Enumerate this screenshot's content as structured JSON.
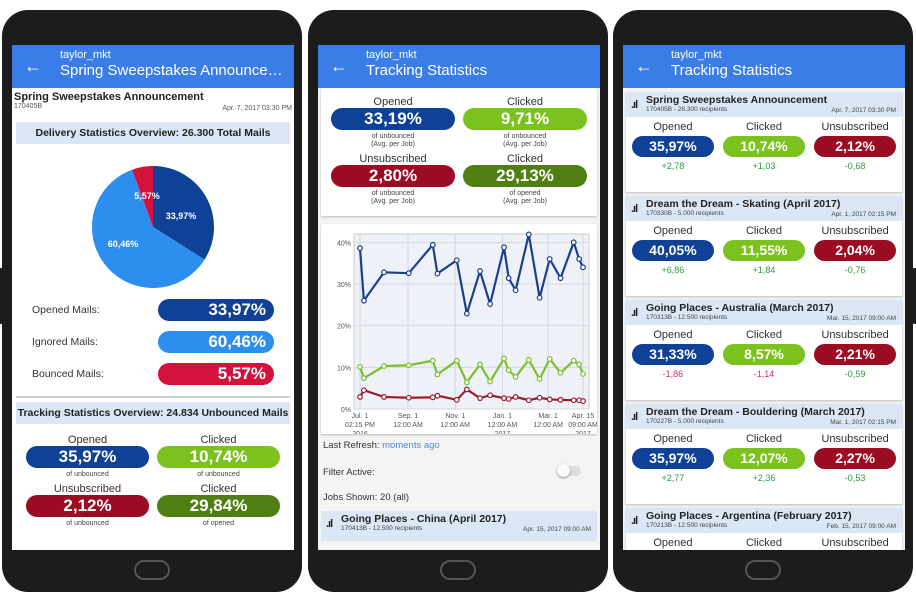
{
  "user": "taylor_mkt",
  "colors": {
    "opened": "#0f4196",
    "ignored": "#2c8ff0",
    "bounced": "#d3113b",
    "clicked": "#7bc21f",
    "unsubscribed": "#9b0b22",
    "clicked_of_opened": "#4f7f12",
    "header": "#3a7de6"
  },
  "phone1": {
    "header_title": "Spring Sweepstakes Announcement",
    "job_title": "Spring Sweepstakes Announcement",
    "job_id": "170405B",
    "job_date": "Apr. 7, 2017 03:30 PM",
    "delivery_banner": "Delivery Statistics Overview: 26.300 Total Mails",
    "pie": [
      {
        "label": "Opened Mails:",
        "value": 33.97,
        "text": "33,97%",
        "color": "#0f4196"
      },
      {
        "label": "Ignored Mails:",
        "value": 60.46,
        "text": "60,46%",
        "color": "#2c8ff0"
      },
      {
        "label": "Bounced Mails:",
        "value": 5.57,
        "text": "5,57%",
        "color": "#d3113b"
      }
    ],
    "tracking_banner": "Tracking Statistics Overview: 24.834 Unbounced Mails",
    "stats": [
      {
        "label": "Opened",
        "value": "35,97%",
        "sub": "of unbounced"
      },
      {
        "label": "Clicked",
        "value": "10,74%",
        "sub": "of unbounced"
      },
      {
        "label": "Unsubscribed",
        "value": "2,12%",
        "sub": "of unbounced"
      },
      {
        "label": "Clicked",
        "value": "29,84%",
        "sub": "of opened"
      }
    ]
  },
  "phone2": {
    "header_title": "Tracking Statistics",
    "stats": [
      {
        "label": "Opened",
        "value": "33,19%",
        "sub": "of unbounced",
        "sub2": "(Avg. per Job)"
      },
      {
        "label": "Clicked",
        "value": "9,71%",
        "sub": "of unbounced",
        "sub2": "(Avg. per Job)"
      },
      {
        "label": "Unsubscribed",
        "value": "2,80%",
        "sub": "of unbounced",
        "sub2": "(Avg. per Job)"
      },
      {
        "label": "Clicked",
        "value": "29,13%",
        "sub": "of opened",
        "sub2": "(Avg. per Job)"
      }
    ],
    "last_refresh_label": "Last Refresh:",
    "last_refresh_value": "moments ago",
    "filter_label": "Filter Active:",
    "filter_on": false,
    "jobs_shown": "Jobs Shown: 20 (all)",
    "list_item": {
      "title": "Going Places - China (April 2017)",
      "sub": "170413B - 12.500 recipients",
      "date": "Apr. 15, 2017 09:00 AM"
    }
  },
  "chart_data": {
    "type": "line",
    "grid": true,
    "ylim": [
      0,
      42
    ],
    "y_ticks": [
      "0%",
      "10%",
      "20%",
      "30%",
      "40%"
    ],
    "x_ticks": [
      {
        "l1": "Jul. 1",
        "l2": "02:15 PM",
        "l3": "2016",
        "date": "2016-07-01"
      },
      {
        "l1": "Sep. 1",
        "l2": "12:00 AM",
        "l3": "",
        "date": "2016-09-01"
      },
      {
        "l1": "Nov. 1",
        "l2": "12:00 AM",
        "l3": "",
        "date": "2016-11-01"
      },
      {
        "l1": "Jan. 1",
        "l2": "12:00 AM",
        "l3": "2017",
        "date": "2017-01-01"
      },
      {
        "l1": "Mar. 1",
        "l2": "12:00 AM",
        "l3": "",
        "date": "2017-03-01"
      },
      {
        "l1": "Apr. 15",
        "l2": "09:00 AM",
        "l3": "2017",
        "date": "2017-04-15"
      }
    ],
    "xlim": [
      "2016-07-01",
      "2017-04-15"
    ],
    "x": [
      "2016-07-01",
      "2016-07-06",
      "2016-08-01",
      "2016-09-02",
      "2016-10-03",
      "2016-10-09",
      "2016-11-03",
      "2016-11-16",
      "2016-12-03",
      "2016-12-16",
      "2017-01-03",
      "2017-01-09",
      "2017-01-18",
      "2017-02-04",
      "2017-02-18",
      "2017-03-03",
      "2017-03-17",
      "2017-04-03",
      "2017-04-10",
      "2017-04-15"
    ],
    "series": [
      {
        "color": "#1c3f8c",
        "values": [
          38.6,
          26,
          32.8,
          32.6,
          39.4,
          32.5,
          35.7,
          22.9,
          33.1,
          25.2,
          38.8,
          31.4,
          28.5,
          41.9,
          26.7,
          36,
          31.4,
          40,
          36,
          34
        ]
      },
      {
        "color": "#7bbf2a",
        "values": [
          10.1,
          7.4,
          10.3,
          10.5,
          11.6,
          8.3,
          11.6,
          6.4,
          10.7,
          6.6,
          12.1,
          9.3,
          7.7,
          11.8,
          7.2,
          12,
          8.7,
          11.6,
          10.7,
          8.4
        ]
      },
      {
        "color": "#9b1b2a",
        "values": [
          2.9,
          4.5,
          2.9,
          2.7,
          2.8,
          3.2,
          2.2,
          4.7,
          2.6,
          3.3,
          2.6,
          2.4,
          2.9,
          2.1,
          2.7,
          2.3,
          2.2,
          2.1,
          2.1,
          1.9
        ]
      }
    ]
  },
  "phone3": {
    "header_title": "Tracking Statistics",
    "col_labels": [
      "Opened",
      "Clicked",
      "Unsubscribed"
    ],
    "cards": [
      {
        "title": "Spring Sweepstakes Announcement",
        "sub": "170405B - 26.300 recipients",
        "date": "Apr. 7, 2017 03:30 PM",
        "values": [
          "35,97%",
          "10,74%",
          "2,12%"
        ],
        "deltas": [
          "+2,78",
          "+1,03",
          "-0,68"
        ],
        "delta_pos": [
          true,
          true,
          true
        ]
      },
      {
        "title": "Dream the Dream - Skating (April 2017)",
        "sub": "170330B - 5.000 recipients",
        "date": "Apr. 1, 2017 02:15 PM",
        "values": [
          "40,05%",
          "11,55%",
          "2,04%"
        ],
        "deltas": [
          "+6,86",
          "+1,84",
          "-0,76"
        ],
        "delta_pos": [
          true,
          true,
          true
        ]
      },
      {
        "title": "Going Places - Australia (March 2017)",
        "sub": "170313B - 12.500 recipients",
        "date": "Mar. 15, 2017 09:00 AM",
        "values": [
          "31,33%",
          "8,57%",
          "2,21%"
        ],
        "deltas": [
          "-1,86",
          "-1,14",
          "-0,59"
        ],
        "delta_pos": [
          false,
          false,
          true
        ]
      },
      {
        "title": "Dream the Dream - Bouldering (March 2017)",
        "sub": "170227B - 5.000 recipients",
        "date": "Mar. 1, 2017 02:15 PM",
        "values": [
          "35,97%",
          "12,07%",
          "2,27%"
        ],
        "deltas": [
          "+2,77",
          "+2,36",
          "-0,53"
        ],
        "delta_pos": [
          true,
          true,
          true
        ]
      },
      {
        "title": "Going Places - Argentina (February 2017)",
        "sub": "170213B - 12.500 recipients",
        "date": "Feb. 15, 2017 09:00 AM",
        "values": [
          "",
          "",
          ""
        ],
        "deltas": [
          "",
          "",
          ""
        ],
        "delta_pos": [
          true,
          true,
          true
        ]
      }
    ]
  }
}
